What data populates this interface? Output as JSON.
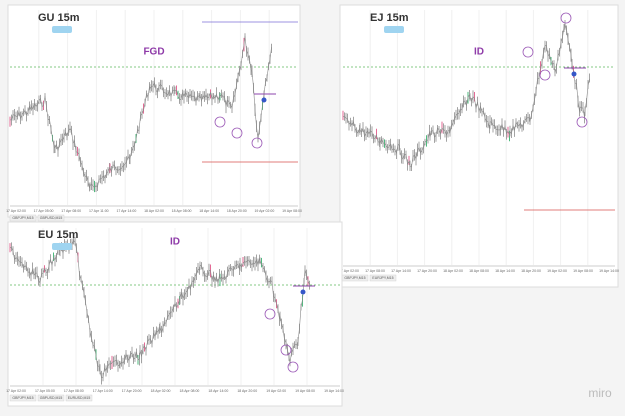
{
  "panels": [
    {
      "title": "GU 15m",
      "pattern": "FGD",
      "tabs": [
        "GBPJPY,M15",
        "GBPUSD,M15"
      ],
      "dates": [
        "17 Apr 02:00",
        "17 Apr 05:00",
        "17 Apr 08:00",
        "17 Apr 11:00",
        "17 Apr 14:00",
        "18 Apr 02:00",
        "18 Apr 08:00",
        "18 Apr 14:00",
        "18 Apr 20:00",
        "19 Apr 02:00",
        "19 Apr 08:00"
      ]
    },
    {
      "title": "EJ 15m",
      "pattern": "ID",
      "tabs": [
        "GBPJPY,M15",
        "EURJPY,M15"
      ],
      "dates": [
        "17 Apr 02:00",
        "17 Apr 08:00",
        "17 Apr 14:00",
        "17 Apr 20:00",
        "18 Apr 02:00",
        "18 Apr 08:00",
        "18 Apr 14:00",
        "18 Apr 20:00",
        "19 Apr 02:00",
        "19 Apr 08:00",
        "19 Apr 14:00"
      ]
    },
    {
      "title": "EU 15m",
      "pattern": "ID",
      "tabs": [
        "GBPJPY,M15",
        "GBPUSD,M15",
        "EURUSD,M15"
      ],
      "dates": [
        "17 Apr 02:00",
        "17 Apr 05:00",
        "17 Apr 08:00",
        "17 Apr 14:00",
        "17 Apr 20:00",
        "18 Apr 02:00",
        "18 Apr 08:00",
        "18 Apr 14:00",
        "18 Apr 20:00",
        "19 Apr 02:00",
        "19 Apr 08:00",
        "19 Apr 14:00"
      ]
    }
  ],
  "watermark": "miro"
}
